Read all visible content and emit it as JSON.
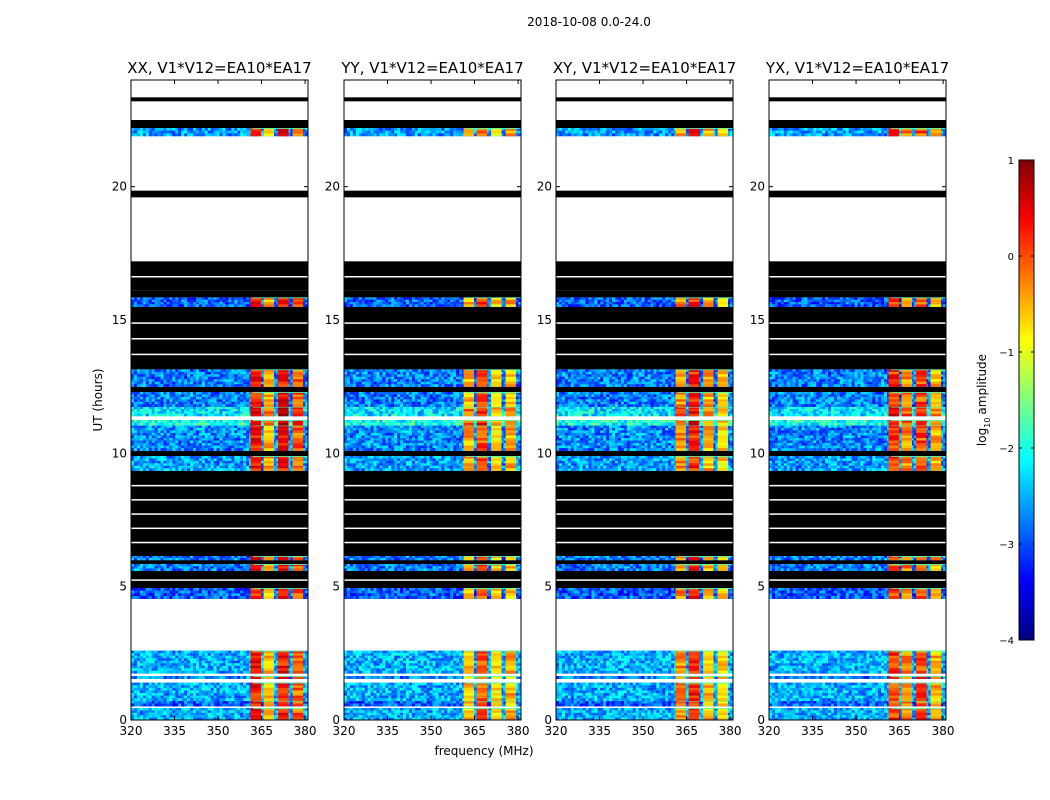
{
  "figure": {
    "suptitle": "2018-10-08 0.0-24.0",
    "colormap": [
      "#00007f",
      "#0000ff",
      "#007fff",
      "#00ffff",
      "#7fff7f",
      "#ffff00",
      "#ff7f00",
      "#ff0000",
      "#7f0000"
    ],
    "background_color": "#ffffff",
    "masked_color": "#000000"
  },
  "chart_data": {
    "type": "heatmap",
    "title": "2018-10-08 0.0-24.0",
    "xlabel": "frequency (MHz)",
    "ylabel": "UT (hours)",
    "xlim": [
      320,
      381
    ],
    "ylim": [
      0,
      24
    ],
    "xticks": [
      320,
      335,
      350,
      365,
      380
    ],
    "xtick_labels": [
      "320",
      "335",
      "350",
      "365",
      "380"
    ],
    "yticks": [
      0,
      5,
      10,
      15,
      20
    ],
    "ytick_labels": [
      "0",
      "5",
      "10",
      "15",
      "20"
    ],
    "colorbar": {
      "label": "log10 amplitude",
      "label_base": "log",
      "label_sub": "10",
      "label_rest": "amplitude",
      "min": -4,
      "max": 1,
      "ticks": [
        -4,
        -3,
        -2,
        -1,
        0,
        1
      ],
      "tick_labels": [
        "−4",
        "−3",
        "−2",
        "−1",
        "0",
        "1"
      ]
    },
    "panels": [
      {
        "title": "XX, V1*V12=EA10*EA17",
        "band_intensity": [
          0.86,
          0.7,
          0.86,
          0.78
        ],
        "band_freqs_mhz": [
          363,
          367.5,
          372.5,
          377.5
        ]
      },
      {
        "title": "YY, V1*V12=EA10*EA17",
        "band_intensity": [
          0.7,
          0.8,
          0.66,
          0.7
        ],
        "band_freqs_mhz": [
          363,
          367.5,
          372.5,
          377.5
        ]
      },
      {
        "title": "XY, V1*V12=EA10*EA17",
        "band_intensity": [
          0.74,
          0.84,
          0.7,
          0.66
        ],
        "band_freqs_mhz": [
          363,
          367.5,
          372.5,
          377.5
        ]
      },
      {
        "title": "YX, V1*V12=EA10*EA17",
        "band_intensity": [
          0.82,
          0.74,
          0.8,
          0.7
        ],
        "band_freqs_mhz": [
          363,
          367.5,
          372.5,
          377.5
        ]
      }
    ],
    "time_segments": [
      {
        "t0": 0.0,
        "t1": 0.45,
        "state": "data",
        "level": 0.3
      },
      {
        "t0": 0.45,
        "t1": 0.52,
        "state": "blank"
      },
      {
        "t0": 0.52,
        "t1": 0.72,
        "state": "data",
        "level": 0.22
      },
      {
        "t0": 0.72,
        "t1": 1.4,
        "state": "data",
        "level": 0.3
      },
      {
        "t0": 1.4,
        "t1": 1.55,
        "state": "blank"
      },
      {
        "t0": 1.55,
        "t1": 1.65,
        "state": "data",
        "level": 0.25
      },
      {
        "t0": 1.65,
        "t1": 1.75,
        "state": "blank"
      },
      {
        "t0": 1.75,
        "t1": 2.6,
        "state": "data",
        "level": 0.3
      },
      {
        "t0": 2.6,
        "t1": 4.55,
        "state": "blank"
      },
      {
        "t0": 4.55,
        "t1": 4.95,
        "state": "data",
        "level": 0.22
      },
      {
        "t0": 4.95,
        "t1": 5.6,
        "state": "masked"
      },
      {
        "t0": 5.6,
        "t1": 5.85,
        "state": "data",
        "level": 0.25
      },
      {
        "t0": 5.85,
        "t1": 6.0,
        "state": "masked"
      },
      {
        "t0": 6.0,
        "t1": 6.15,
        "state": "data",
        "level": 0.25
      },
      {
        "t0": 6.15,
        "t1": 9.35,
        "state": "masked"
      },
      {
        "t0": 9.35,
        "t1": 9.9,
        "state": "data",
        "level": 0.28
      },
      {
        "t0": 9.9,
        "t1": 10.1,
        "state": "masked"
      },
      {
        "t0": 10.1,
        "t1": 11.05,
        "state": "data",
        "level": 0.26
      },
      {
        "t0": 11.05,
        "t1": 11.25,
        "state": "data",
        "level": 0.4
      },
      {
        "t0": 11.25,
        "t1": 11.4,
        "state": "blank"
      },
      {
        "t0": 11.4,
        "t1": 11.75,
        "state": "data",
        "level": 0.35
      },
      {
        "t0": 11.75,
        "t1": 12.3,
        "state": "data",
        "level": 0.25
      },
      {
        "t0": 12.3,
        "t1": 12.5,
        "state": "masked"
      },
      {
        "t0": 12.5,
        "t1": 13.15,
        "state": "data",
        "level": 0.25
      },
      {
        "t0": 13.15,
        "t1": 15.5,
        "state": "masked"
      },
      {
        "t0": 15.5,
        "t1": 15.85,
        "state": "data",
        "level": 0.22
      },
      {
        "t0": 15.85,
        "t1": 16.1,
        "state": "masked"
      },
      {
        "t0": 16.1,
        "t1": 17.2,
        "state": "masked"
      },
      {
        "t0": 17.2,
        "t1": 19.6,
        "state": "blank"
      },
      {
        "t0": 19.6,
        "t1": 19.85,
        "state": "masked"
      },
      {
        "t0": 19.85,
        "t1": 21.9,
        "state": "blank"
      },
      {
        "t0": 21.9,
        "t1": 22.2,
        "state": "data",
        "level": 0.28
      },
      {
        "t0": 22.2,
        "t1": 22.5,
        "state": "masked"
      },
      {
        "t0": 22.5,
        "t1": 23.2,
        "state": "blank"
      },
      {
        "t0": 23.2,
        "t1": 23.35,
        "state": "masked"
      },
      {
        "t0": 23.35,
        "t1": 24.0,
        "state": "blank"
      }
    ]
  }
}
